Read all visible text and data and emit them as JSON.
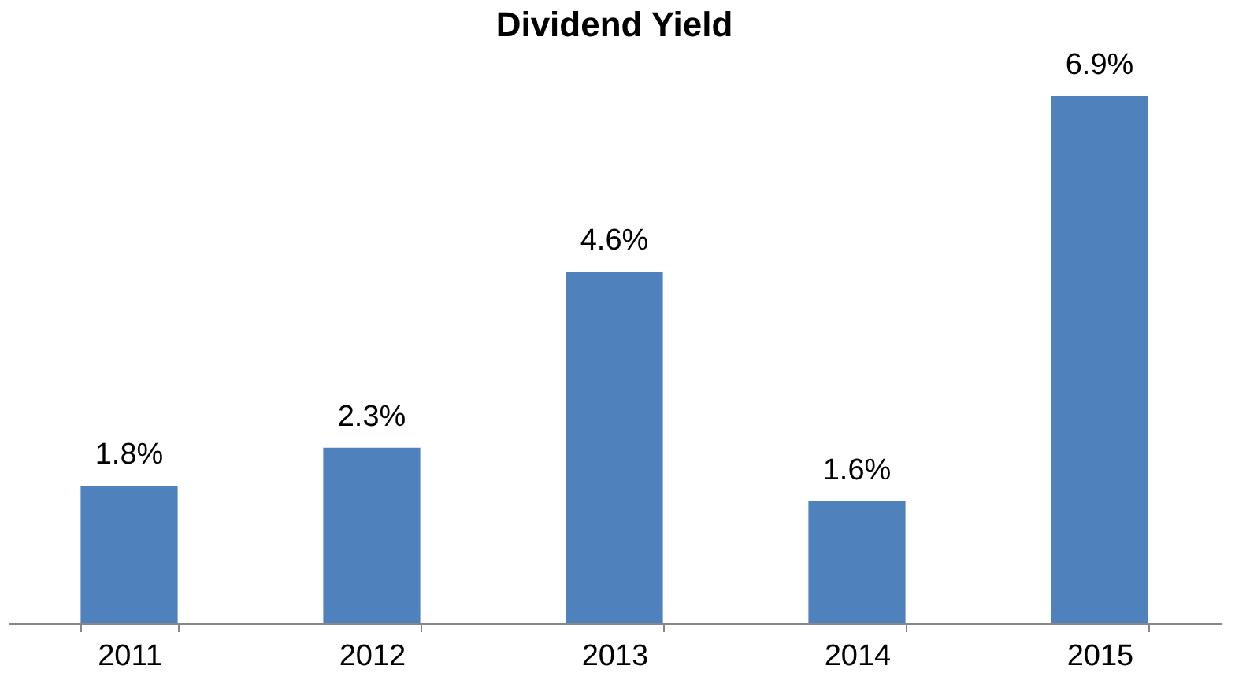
{
  "chart_data": {
    "type": "bar",
    "title": "Dividend Yield",
    "categories": [
      "2011",
      "2012",
      "2013",
      "2014",
      "2015"
    ],
    "values": [
      1.8,
      2.3,
      4.6,
      1.6,
      6.9
    ],
    "value_labels": [
      "1.8%",
      "2.3%",
      "4.6%",
      "1.6%",
      "6.9%"
    ],
    "color": "#4f81bd",
    "grid": false,
    "tick_labels": "x"
  }
}
